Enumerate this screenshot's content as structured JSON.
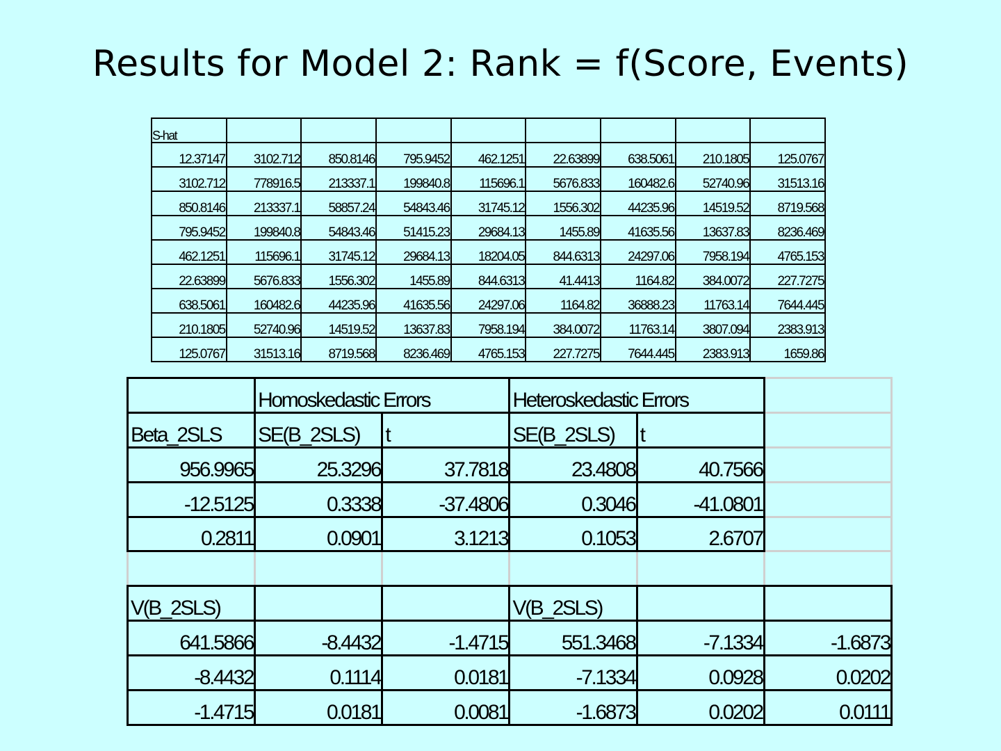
{
  "title": "Results for Model 2: Rank = f(Score, Events)",
  "shat": {
    "label": "S-hat",
    "rows": [
      [
        "12.37147",
        "3102.712",
        "850.8146",
        "795.9452",
        "462.1251",
        "22.63899",
        "638.5061",
        "210.1805",
        "125.0767"
      ],
      [
        "3102.712",
        "778916.5",
        "213337.1",
        "199840.8",
        "115696.1",
        "5676.833",
        "160482.6",
        "52740.96",
        "31513.16"
      ],
      [
        "850.8146",
        "213337.1",
        "58857.24",
        "54843.46",
        "31745.12",
        "1556.302",
        "44235.96",
        "14519.52",
        "8719.568"
      ],
      [
        "795.9452",
        "199840.8",
        "54843.46",
        "51415.23",
        "29684.13",
        "1455.89",
        "41635.56",
        "13637.83",
        "8236.469"
      ],
      [
        "462.1251",
        "115696.1",
        "31745.12",
        "29684.13",
        "18204.05",
        "844.6313",
        "24297.06",
        "7958.194",
        "4765.153"
      ],
      [
        "22.63899",
        "5676.833",
        "1556.302",
        "1455.89",
        "844.6313",
        "41.4413",
        "1164.82",
        "384.0072",
        "227.7275"
      ],
      [
        "638.5061",
        "160482.6",
        "44235.96",
        "41635.56",
        "24297.06",
        "1164.82",
        "36888.23",
        "11763.14",
        "7644.445"
      ],
      [
        "210.1805",
        "52740.96",
        "14519.52",
        "13637.83",
        "7958.194",
        "384.0072",
        "11763.14",
        "3807.094",
        "2383.913"
      ],
      [
        "125.0767",
        "31513.16",
        "8719.568",
        "8236.469",
        "4765.153",
        "227.7275",
        "7644.445",
        "2383.913",
        "1659.86"
      ]
    ]
  },
  "results": {
    "homo_header": "Homoskedastic Errors",
    "hetero_header": "Heteroskedastic Errors",
    "col_headers": [
      "Beta_2SLS",
      "SE(B_2SLS)",
      "t",
      "SE(B_2SLS)",
      "t"
    ],
    "coef_rows": [
      [
        "956.9965",
        "25.3296",
        "37.7818",
        "23.4808",
        "40.7566"
      ],
      [
        "-12.5125",
        "0.3338",
        "-37.4806",
        "0.3046",
        "-41.0801"
      ],
      [
        "0.2811",
        "0.0901",
        "3.1213",
        "0.1053",
        "2.6707"
      ]
    ],
    "v_label_homo": "V(B_2SLS)",
    "v_label_hetero": "V(B_2SLS)",
    "v_rows": [
      [
        "641.5866",
        "-8.4432",
        "-1.4715",
        "551.3468",
        "-7.1334",
        "-1.6873"
      ],
      [
        "-8.4432",
        "0.1114",
        "0.0181",
        "-7.1334",
        "0.0928",
        "0.0202"
      ],
      [
        "-1.4715",
        "0.0181",
        "0.0081",
        "-1.6873",
        "0.0202",
        "0.0111"
      ]
    ]
  }
}
